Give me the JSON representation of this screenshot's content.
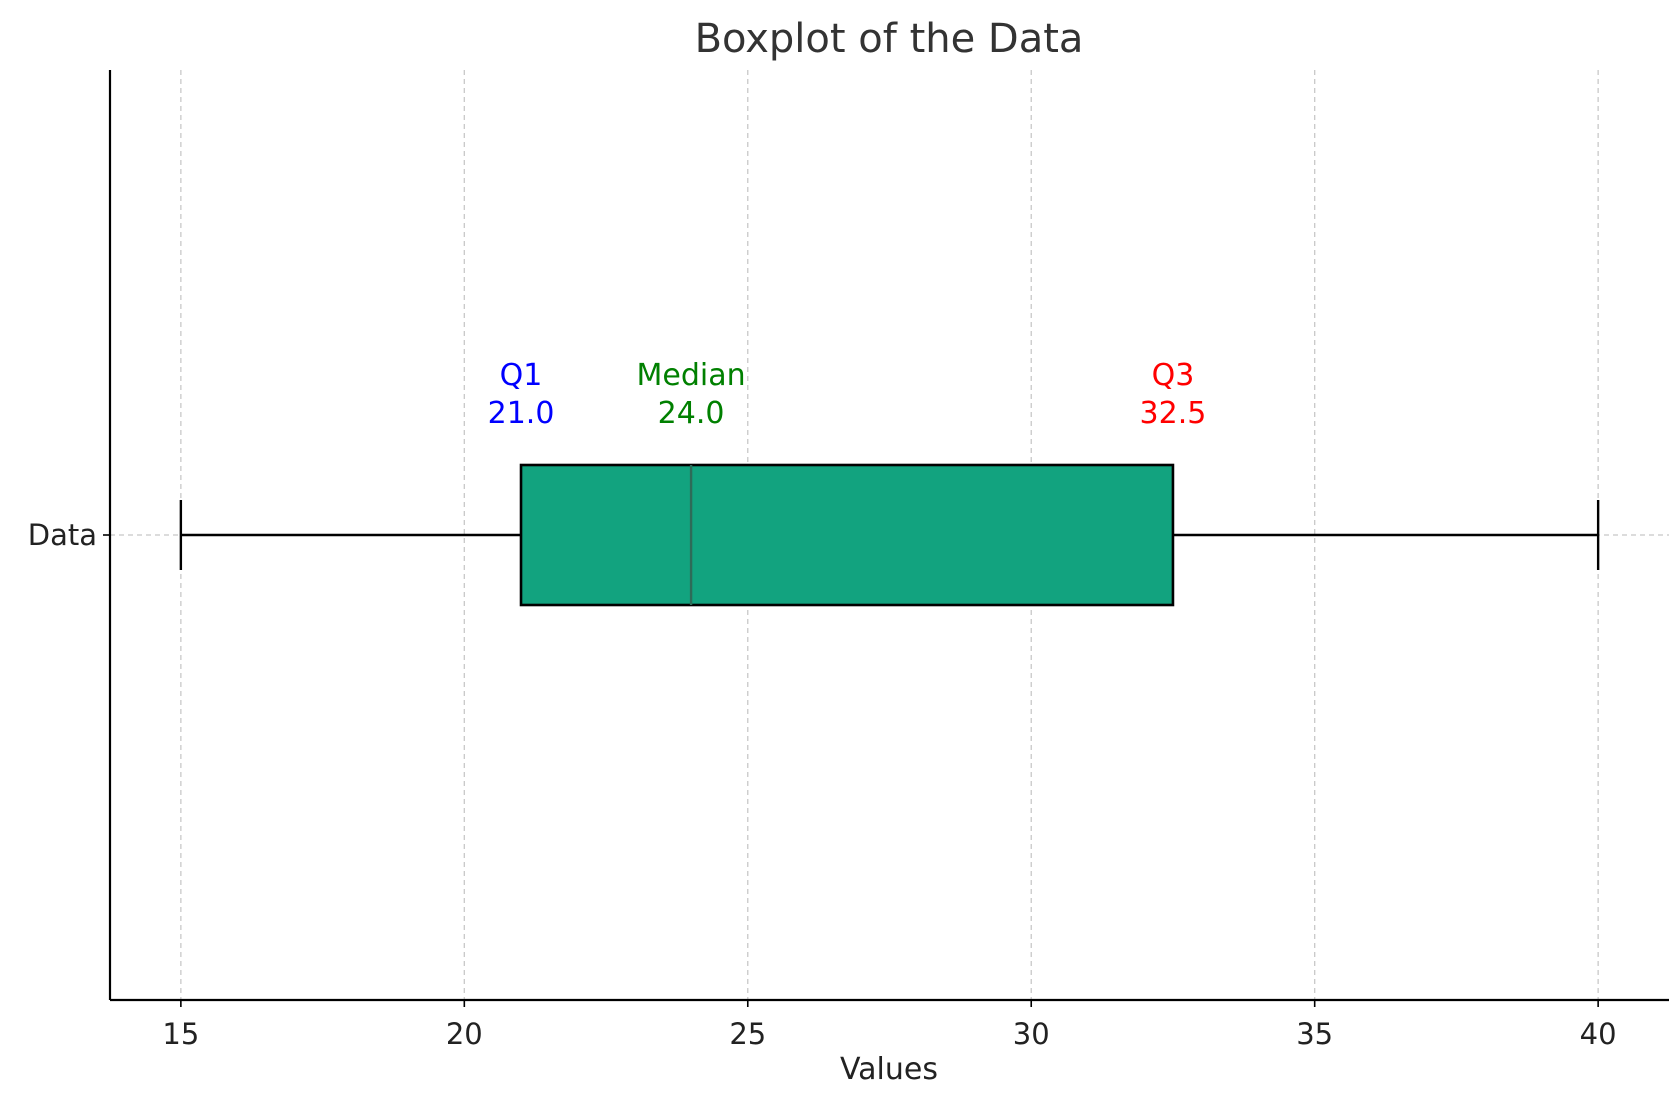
{
  "chart_data": {
    "type": "boxplot",
    "title": "Boxplot of the Data",
    "xlabel": "Values",
    "ylabel": "",
    "orientation": "horizontal",
    "xlim": [
      13.75,
      41.25
    ],
    "grid": "x-dashed",
    "x_ticks": [
      15,
      20,
      25,
      30,
      35,
      40
    ],
    "categories": [
      "Data"
    ],
    "boxes": [
      {
        "label": "Data",
        "min": 15,
        "q1": 21.0,
        "median": 24.0,
        "q3": 32.5,
        "max": 40,
        "fill_color": "#12a37f"
      }
    ],
    "annotations": [
      {
        "name": "Q1",
        "value_text": "21.0",
        "x": 21.0,
        "color": "#0000ff"
      },
      {
        "name": "Median",
        "value_text": "24.0",
        "x": 24.0,
        "color": "#008000"
      },
      {
        "name": "Q3",
        "value_text": "32.5",
        "x": 32.5,
        "color": "#ff0000"
      }
    ]
  }
}
